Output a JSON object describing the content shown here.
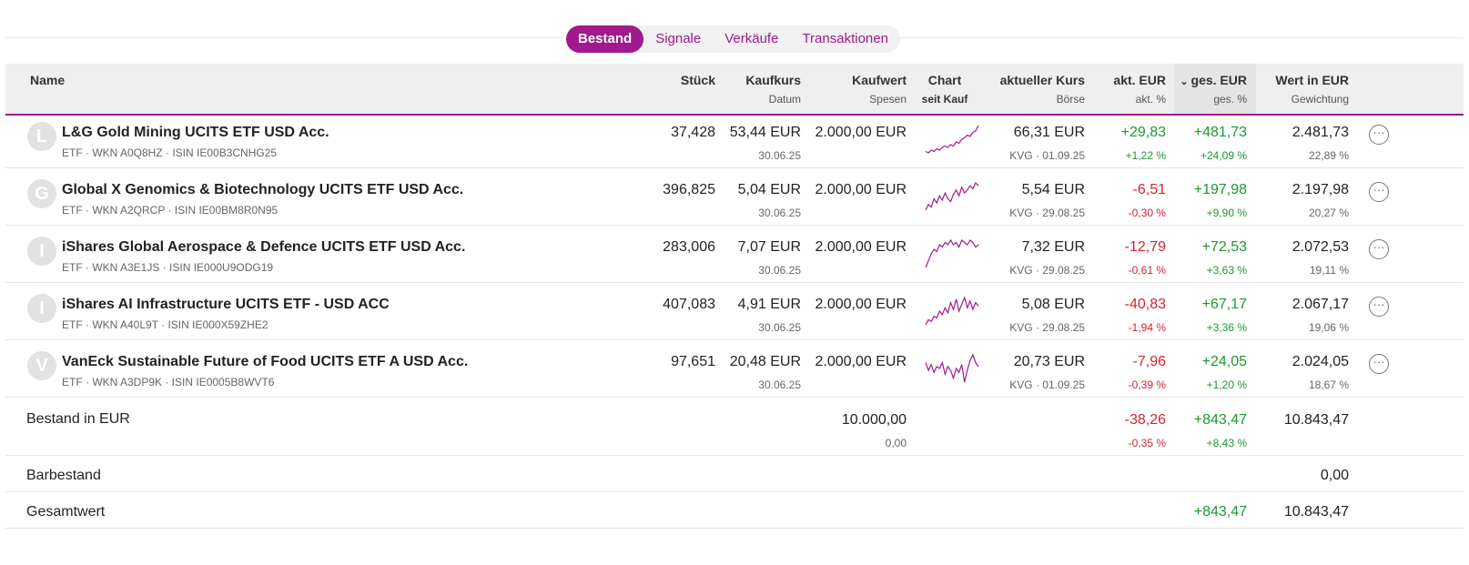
{
  "tabs": [
    {
      "label": "Bestand",
      "active": true
    },
    {
      "label": "Signale",
      "active": false
    },
    {
      "label": "Verkäufe",
      "active": false
    },
    {
      "label": "Transaktionen",
      "active": false
    }
  ],
  "header": {
    "name": "Name",
    "stueck": "Stück",
    "kaufkurs": "Kaufkurs",
    "datum": "Datum",
    "kaufwert": "Kaufwert",
    "spesen": "Spesen",
    "chart": "Chart",
    "seit_kauf": "seit Kauf",
    "aktueller_kurs": "aktueller Kurs",
    "boerse": "Börse",
    "akt_eur": "akt. EUR",
    "akt_pct": "akt. %",
    "ges_eur": "ges. EUR",
    "ges_pct": "ges. %",
    "wert_eur": "Wert in EUR",
    "gewichtung": "Gewichtung",
    "sort_icon": "chevron-down-icon"
  },
  "rows": [
    {
      "initial": "L",
      "name": "L&G Gold Mining UCITS ETF USD Acc.",
      "sub": "ETF · WKN A0Q8HZ · ISIN IE00B3CNHG25",
      "stueck": "37,428",
      "kaufkurs": "53,44 EUR",
      "datum": "30.06.25",
      "kaufwert": "2.000,00 EUR",
      "kurs": "66,31 EUR",
      "boerse": "KVG · 01.09.25",
      "akt_eur": "+29,83",
      "akt_pct": "+1,22 %",
      "akt_sign": "pos",
      "ges_eur": "+481,73",
      "ges_pct": "+24,09 %",
      "ges_sign": "pos",
      "wert": "2.481,73",
      "gewichtung": "22,89 %",
      "spark": [
        3,
        2,
        4,
        3,
        5,
        4,
        6,
        7,
        6,
        8,
        7,
        10,
        9,
        12,
        13,
        15,
        14,
        17,
        18,
        22
      ]
    },
    {
      "initial": "G",
      "name": "Global X Genomics & Biotechnology UCITS ETF USD Acc.",
      "sub": "ETF · WKN A2QRCP · ISIN IE00BM8R0N95",
      "stueck": "396,825",
      "kaufkurs": "5,04 EUR",
      "datum": "30.06.25",
      "kaufwert": "2.000,00 EUR",
      "kurs": "5,54 EUR",
      "boerse": "KVG · 29.08.25",
      "akt_eur": "-6,51",
      "akt_pct": "-0,30 %",
      "akt_sign": "neg",
      "ges_eur": "+197,98",
      "ges_pct": "+9,90 %",
      "ges_sign": "pos",
      "wert": "2.197,98",
      "gewichtung": "20,27 %",
      "spark": [
        2,
        6,
        4,
        10,
        7,
        12,
        9,
        14,
        10,
        8,
        13,
        16,
        12,
        18,
        14,
        16,
        19,
        17,
        21,
        19
      ]
    },
    {
      "initial": "I",
      "name": "iShares Global Aerospace & Defence UCITS ETF USD Acc.",
      "sub": "ETF · WKN A3E1JS · ISIN IE000U9ODG19",
      "stueck": "283,006",
      "kaufkurs": "7,07 EUR",
      "datum": "30.06.25",
      "kaufwert": "2.000,00 EUR",
      "kurs": "7,32 EUR",
      "boerse": "KVG · 29.08.25",
      "akt_eur": "-12,79",
      "akt_pct": "-0,61 %",
      "akt_sign": "neg",
      "ges_eur": "+72,53",
      "ges_pct": "+3,63 %",
      "ges_sign": "pos",
      "wert": "2.072,53",
      "gewichtung": "19,11 %",
      "spark": [
        2,
        5,
        8,
        10,
        9,
        12,
        11,
        13,
        12,
        14,
        12,
        13,
        11,
        14,
        13,
        12,
        14,
        13,
        11,
        12
      ]
    },
    {
      "initial": "I",
      "name": "iShares AI Infrastructure UCITS ETF - USD ACC",
      "sub": "ETF · WKN A40L9T · ISIN IE000X59ZHE2",
      "stueck": "407,083",
      "kaufkurs": "4,91 EUR",
      "datum": "30.06.25",
      "kaufwert": "2.000,00 EUR",
      "kurs": "5,08 EUR",
      "boerse": "KVG · 29.08.25",
      "akt_eur": "-40,83",
      "akt_pct": "-1,94 %",
      "akt_sign": "neg",
      "ges_eur": "+67,17",
      "ges_pct": "+3,36 %",
      "ges_sign": "pos",
      "wert": "2.067,17",
      "gewichtung": "19,06 %",
      "spark": [
        3,
        6,
        5,
        8,
        7,
        11,
        9,
        13,
        10,
        16,
        12,
        18,
        11,
        15,
        19,
        13,
        17,
        12,
        16,
        14
      ]
    },
    {
      "initial": "V",
      "name": "VanEck Sustainable Future of Food UCITS ETF A USD Acc.",
      "sub": "ETF · WKN A3DP9K · ISIN IE0005B8WVT6",
      "stueck": "97,651",
      "kaufkurs": "20,48 EUR",
      "datum": "30.06.25",
      "kaufwert": "2.000,00 EUR",
      "kurs": "20,73 EUR",
      "boerse": "KVG · 01.09.25",
      "akt_eur": "-7,96",
      "akt_pct": "-0,39 %",
      "akt_sign": "neg",
      "ges_eur": "+24,05",
      "ges_pct": "+1,20 %",
      "ges_sign": "pos",
      "wert": "2.024,05",
      "gewichtung": "18,67 %",
      "spark": [
        14,
        10,
        13,
        9,
        12,
        11,
        14,
        8,
        12,
        10,
        6,
        11,
        9,
        13,
        4,
        10,
        15,
        18,
        14,
        12
      ]
    }
  ],
  "summary": {
    "bestand_label": "Bestand in EUR",
    "bestand_kaufwert": "10.000,00",
    "bestand_spesen": "0,00",
    "bestand_akt_eur": "-38,26",
    "bestand_akt_pct": "-0,35 %",
    "bestand_ges_eur": "+843,47",
    "bestand_ges_pct": "+8,43 %",
    "bestand_wert": "10.843,47",
    "bar_label": "Barbestand",
    "bar_wert": "0,00",
    "gesamt_label": "Gesamtwert",
    "gesamt_ges_eur": "+843,47",
    "gesamt_wert": "10.843,47"
  },
  "colors": {
    "accent": "#a1198f",
    "positive": "#1a9a2e",
    "negative": "#d5232f"
  }
}
